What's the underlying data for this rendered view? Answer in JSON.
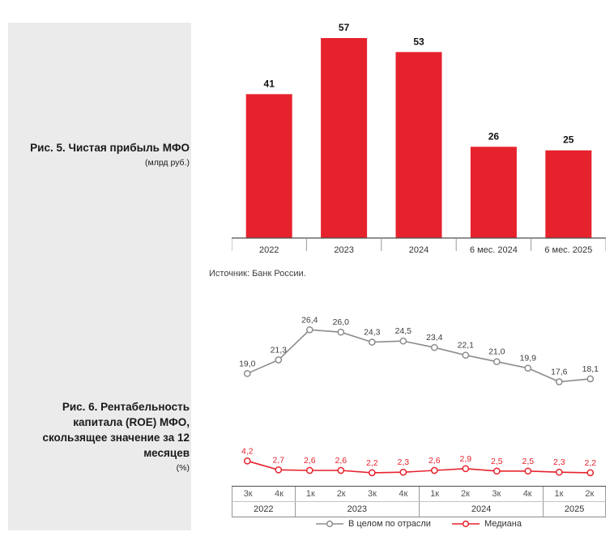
{
  "sidebar": {
    "fig5": {
      "title": "Рис. 5. Чистая прибыль МФО",
      "unit": "(млрд руб.)"
    },
    "fig6": {
      "title": "Рис. 6. Рентабельность капитала (ROE) МФО, скользящее значение за 12 месяцев",
      "unit": "(%)"
    }
  },
  "source_note": "Источник: Банк России.",
  "colors": {
    "accent_red": "#e6222d",
    "panel_gray": "#ebebeb",
    "line_gray": "#8c8c8c"
  },
  "chart_data": [
    {
      "type": "bar",
      "title": "Рис. 5. Чистая прибыль МФО (млрд руб.)",
      "categories": [
        "2022",
        "2023",
        "2024",
        "6 мес. 2024",
        "6 мес. 2025"
      ],
      "values": [
        41,
        57,
        53,
        26,
        25
      ],
      "ylim": [
        0,
        60
      ],
      "bar_color": "#e6222d",
      "data_labels": true,
      "grid": false
    },
    {
      "type": "line",
      "title": "Рис. 6. Рентабельность капитала (ROE) МФО, скользящее значение за 12 месяцев (%)",
      "categories": [
        "3к",
        "4к",
        "1к",
        "2к",
        "3к",
        "4к",
        "1к",
        "2к",
        "3к",
        "4к",
        "1к",
        "2к"
      ],
      "year_groups": [
        {
          "label": "2022",
          "span": 2
        },
        {
          "label": "2023",
          "span": 4
        },
        {
          "label": "2024",
          "span": 4
        },
        {
          "label": "2025",
          "span": 2
        }
      ],
      "series": [
        {
          "name": "В целом по отрасли",
          "color": "#8c8c8c",
          "label_color": "#3d3d3d",
          "values": [
            19.0,
            21.3,
            26.4,
            26.0,
            24.3,
            24.5,
            23.4,
            22.1,
            21.0,
            19.9,
            17.6,
            18.1
          ]
        },
        {
          "name": "Медиана",
          "color": "#e6222d",
          "label_color": "#e6222d",
          "values": [
            4.2,
            2.7,
            2.6,
            2.6,
            2.2,
            2.3,
            2.6,
            2.9,
            2.5,
            2.5,
            2.3,
            2.2
          ]
        }
      ],
      "ylim": [
        0,
        30
      ],
      "grid": false,
      "legend_position": "bottom"
    }
  ],
  "legend": [
    {
      "label": "В целом по отрасли",
      "color": "#8c8c8c"
    },
    {
      "label": "Медиана",
      "color": "#e6222d"
    }
  ]
}
